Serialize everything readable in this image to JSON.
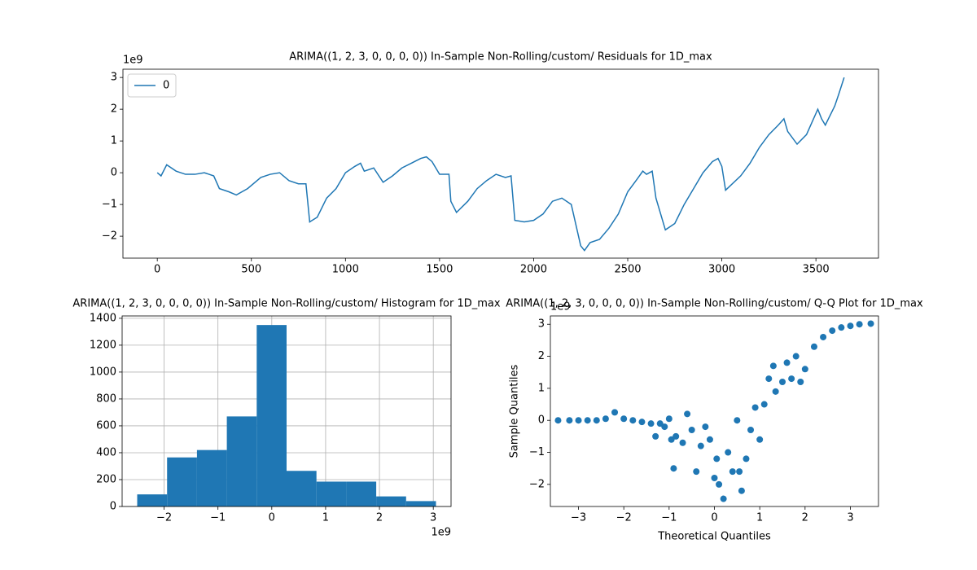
{
  "chart_data": [
    {
      "type": "line",
      "title": "ARIMA((1, 2, 3, 0, 0, 0, 0)) In-Sample Non-Rolling/custom/ Residuals for 1D_max",
      "x": [
        0,
        20,
        50,
        100,
        150,
        200,
        250,
        300,
        330,
        380,
        420,
        480,
        550,
        600,
        650,
        700,
        750,
        790,
        810,
        850,
        900,
        950,
        1000,
        1050,
        1080,
        1100,
        1150,
        1200,
        1250,
        1300,
        1350,
        1400,
        1430,
        1460,
        1500,
        1550,
        1560,
        1590,
        1650,
        1700,
        1750,
        1800,
        1850,
        1880,
        1900,
        1950,
        2000,
        2050,
        2100,
        2150,
        2200,
        2250,
        2270,
        2300,
        2350,
        2400,
        2450,
        2500,
        2550,
        2580,
        2600,
        2630,
        2650,
        2700,
        2750,
        2800,
        2850,
        2900,
        2950,
        2980,
        3000,
        3020,
        3100,
        3150,
        3200,
        3250,
        3300,
        3330,
        3350,
        3400,
        3450,
        3480,
        3510,
        3530,
        3550,
        3600,
        3620,
        3650
      ],
      "series": [
        {
          "name": "0",
          "color": "#1f77b4",
          "values": [
            0,
            -0.1,
            0.25,
            0.05,
            -0.05,
            -0.05,
            0.0,
            -0.1,
            -0.5,
            -0.6,
            -0.7,
            -0.5,
            -0.15,
            -0.05,
            0,
            -0.25,
            -0.35,
            -0.35,
            -1.55,
            -1.4,
            -0.8,
            -0.5,
            0,
            0.2,
            0.3,
            0.05,
            0.15,
            -0.3,
            -0.1,
            0.15,
            0.3,
            0.45,
            0.5,
            0.35,
            -0.05,
            -0.05,
            -0.9,
            -1.25,
            -0.9,
            -0.5,
            -0.25,
            -0.05,
            -0.15,
            -0.1,
            -1.5,
            -1.55,
            -1.5,
            -1.3,
            -0.9,
            -0.8,
            -1.0,
            -2.3,
            -2.45,
            -2.2,
            -2.1,
            -1.75,
            -1.3,
            -0.6,
            -0.2,
            0.05,
            -0.05,
            0.05,
            -0.8,
            -1.8,
            -1.6,
            -1.0,
            -0.5,
            0.0,
            0.35,
            0.45,
            0.2,
            -0.55,
            -0.1,
            0.3,
            0.8,
            1.2,
            1.5,
            1.7,
            1.3,
            0.9,
            1.2,
            1.6,
            2.0,
            1.7,
            1.5,
            2.1,
            2.45,
            3.0
          ]
        }
      ],
      "xlim": [
        -182.5,
        3832.5
      ],
      "xticks": [
        0,
        500,
        1000,
        1500,
        2000,
        2500,
        3000,
        3500
      ],
      "ylim": [
        -2.69,
        3.26
      ],
      "yticks": [
        {
          "value": -2,
          "label": "−2"
        },
        {
          "value": -1,
          "label": "−1"
        },
        0,
        1,
        2,
        3
      ],
      "y_offset": "1e9",
      "legend": "upper left",
      "grid": false
    },
    {
      "type": "histogram",
      "title": "ARIMA((1, 2, 3, 0, 0, 0, 0)) In-Sample Non-Rolling/custom/ Histogram for 1D_max",
      "bins": [
        -2.5,
        -1.945,
        -1.39,
        -0.835,
        -0.28,
        0.275,
        0.83,
        1.385,
        1.94,
        2.495,
        3.05
      ],
      "values": [
        90,
        365,
        420,
        670,
        1350,
        265,
        185,
        185,
        75,
        40
      ],
      "color": "#1f77b4",
      "xlim": [
        -2.78,
        3.33
      ],
      "xticks": [
        {
          "value": -2,
          "label": "−2"
        },
        {
          "value": -1,
          "label": "−1"
        },
        0,
        1,
        2,
        3
      ],
      "ylim": [
        0,
        1417.5
      ],
      "yticks": [
        0,
        200,
        400,
        600,
        800,
        1000,
        1200,
        1400
      ],
      "x_offset": "1e9",
      "grid": true
    },
    {
      "type": "scatter",
      "title": "ARIMA((1, 2, 3, 0, 0, 0, 0)) In-Sample Non-Rolling/custom/ Q-Q Plot for 1D_max",
      "x_label": "Theoretical Quantiles",
      "y_label": "Sample Quantiles",
      "x": [
        -3.45,
        -3.2,
        -3,
        -2.8,
        -2.6,
        -2.4,
        -2.2,
        -2.0,
        -1.8,
        -1.6,
        -1.4,
        -1.3,
        -1.2,
        -1.1,
        -1.0,
        -0.95,
        -0.9,
        -0.85,
        -0.7,
        -0.6,
        -0.5,
        -0.4,
        -0.3,
        -0.2,
        -0.1,
        0,
        0.05,
        0.1,
        0.2,
        0.3,
        0.4,
        0.5,
        0.55,
        0.6,
        0.7,
        0.8,
        0.9,
        1.0,
        1.1,
        1.2,
        1.3,
        1.35,
        1.5,
        1.6,
        1.7,
        1.8,
        1.9,
        2.0,
        2.2,
        2.4,
        2.6,
        2.8,
        3.0,
        3.2,
        3.45
      ],
      "values": [
        0,
        0,
        0,
        0,
        0,
        0.05,
        0.25,
        0.05,
        0,
        -0.05,
        -0.1,
        -0.5,
        -0.1,
        -0.2,
        0.05,
        -0.6,
        -1.5,
        -0.5,
        -0.7,
        0.2,
        -0.3,
        -1.6,
        -0.8,
        -0.2,
        -0.6,
        -1.8,
        -1.2,
        -2.0,
        -2.45,
        -1.0,
        -1.6,
        0.0,
        -1.6,
        -2.2,
        -1.2,
        -0.3,
        0.4,
        -0.6,
        0.5,
        1.3,
        1.7,
        0.9,
        1.2,
        1.8,
        1.3,
        2.0,
        1.2,
        1.6,
        2.3,
        2.6,
        2.8,
        2.9,
        2.95,
        3.0,
        3.02
      ],
      "color": "#1f77b4",
      "xlim": [
        -3.62,
        3.62
      ],
      "xticks": [
        {
          "value": -3,
          "label": "−3"
        },
        {
          "value": -2,
          "label": "−2"
        },
        {
          "value": -1,
          "label": "−1"
        },
        0,
        1,
        2,
        3
      ],
      "ylim": [
        -2.69,
        3.26
      ],
      "yticks": [
        {
          "value": -2,
          "label": "−2"
        },
        {
          "value": -1,
          "label": "−1"
        },
        0,
        1,
        2,
        3
      ],
      "y_offset": "1e9",
      "grid": false
    }
  ]
}
